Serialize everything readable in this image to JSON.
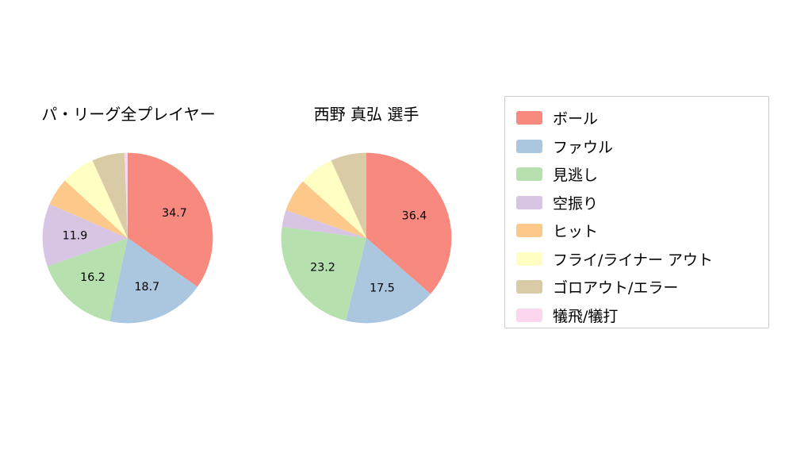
{
  "figure": {
    "background": "#ffffff"
  },
  "charts": {
    "left_title": "パ・リーグ全プレイヤー",
    "right_title": "西野 真弘 選手"
  },
  "legend": {
    "items": [
      {
        "label": "ボール",
        "color": "#f7897e"
      },
      {
        "label": "ファウル",
        "color": "#aac7df"
      },
      {
        "label": "見逃し",
        "color": "#b6e0ae"
      },
      {
        "label": "空振り",
        "color": "#d7c5e3"
      },
      {
        "label": "ヒット",
        "color": "#fcc98b"
      },
      {
        "label": "フライ/ライナー アウト",
        "color": "#ffffc4"
      },
      {
        "label": "ゴロアウト/エラー",
        "color": "#d8cba5"
      },
      {
        "label": "犠飛/犠打",
        "color": "#fbd6ec"
      }
    ]
  },
  "chart_data": [
    {
      "type": "pie",
      "title": "パ・リーグ全プレイヤー",
      "labels": [
        "ボール",
        "ファウル",
        "見逃し",
        "空振り",
        "ヒット",
        "フライ/ライナー アウト",
        "ゴロアウト/エラー",
        "犠飛/犠打"
      ],
      "values": [
        34.7,
        18.7,
        16.2,
        11.9,
        5.3,
        6.4,
        6.2,
        0.6
      ],
      "colors": [
        "#f7897e",
        "#aac7df",
        "#b6e0ae",
        "#d7c5e3",
        "#fcc98b",
        "#ffffc4",
        "#d8cba5",
        "#fbd6ec"
      ],
      "start_angle_deg": 0,
      "direction": "clockwise",
      "label_min": 10,
      "labeled_values": [
        34.7,
        18.7,
        16.2,
        11.9
      ],
      "legend_position": "right"
    },
    {
      "type": "pie",
      "title": "西野 真弘 選手",
      "labels": [
        "ボール",
        "ファウル",
        "見逃し",
        "空振り",
        "ヒット",
        "フライ/ライナー アウト",
        "ゴロアウト/エラー",
        "犠飛/犠打"
      ],
      "values": [
        36.4,
        17.5,
        23.2,
        3.2,
        6.3,
        6.6,
        6.8,
        0.0
      ],
      "colors": [
        "#f7897e",
        "#aac7df",
        "#b6e0ae",
        "#d7c5e3",
        "#fcc98b",
        "#ffffc4",
        "#d8cba5",
        "#fbd6ec"
      ],
      "start_angle_deg": 0,
      "direction": "clockwise",
      "label_min": 10,
      "labeled_values": [
        36.4,
        17.5,
        23.2
      ],
      "legend_position": "right"
    }
  ]
}
